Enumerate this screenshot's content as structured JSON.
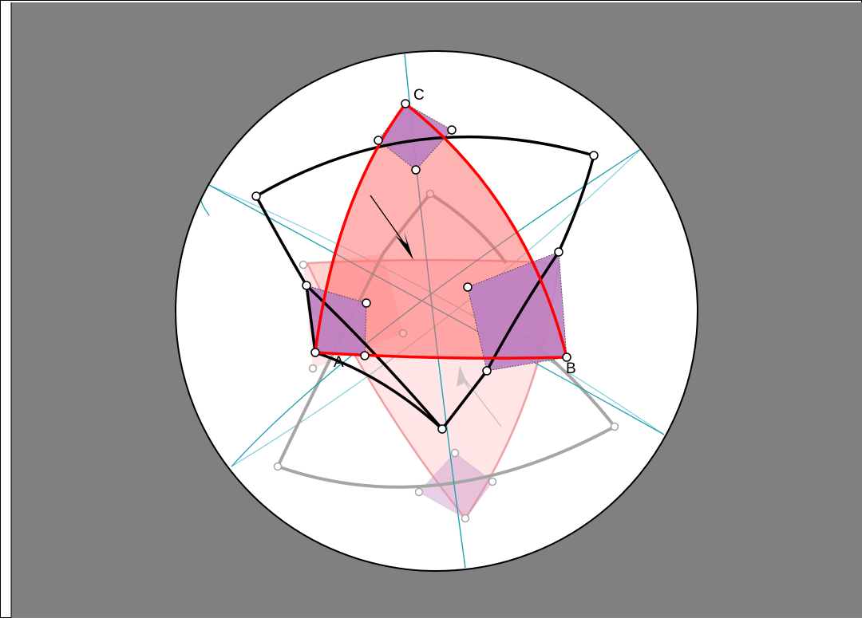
{
  "figure": {
    "labels": {
      "a": "A",
      "b": "B",
      "c": "C"
    },
    "colors": {
      "background": "#808080",
      "sphere_fill": "#ffffff",
      "red_triangle": "#ff0000",
      "red_fill": "#ff6666",
      "square_fill": "#b3b3ff",
      "square_overlap": "#cc6699",
      "great_circles": "#1a9fb0",
      "front_arcs": "#000000",
      "back_arcs": "#a6a6a6"
    }
  }
}
